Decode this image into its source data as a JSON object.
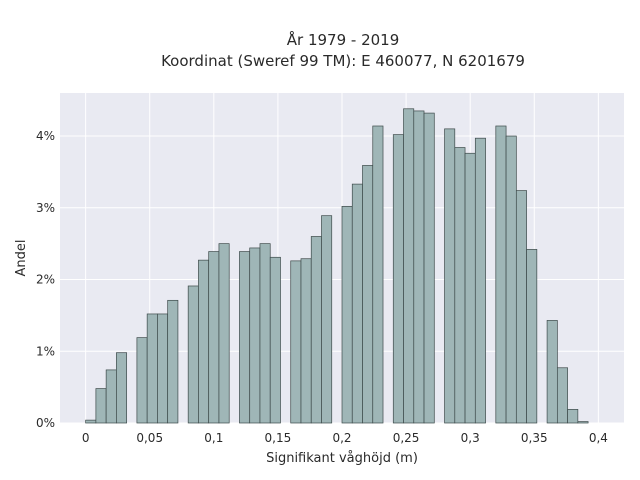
{
  "chart_data": {
    "type": "bar",
    "title": "År 1979 - 2019",
    "subtitle": "Koordinat (Sweref 99 TM): E 460077, N 6201679",
    "xlabel": "Signifikant våghöjd (m)",
    "ylabel": "Andel",
    "xlim": [
      -0.02,
      0.42
    ],
    "ylim": [
      0,
      4.6
    ],
    "bin_width": 0.008,
    "x_ticks": [
      0,
      0.05,
      0.1,
      0.15,
      0.2,
      0.25,
      0.3,
      0.35,
      0.4
    ],
    "x_tick_labels": [
      "0",
      "0,05",
      "0,1",
      "0,15",
      "0,2",
      "0,25",
      "0,3",
      "0,35",
      "0,4"
    ],
    "y_ticks": [
      0,
      1,
      2,
      3,
      4
    ],
    "y_tick_labels": [
      "0%",
      "1%",
      "2%",
      "3%",
      "4%"
    ],
    "bins": [
      {
        "x": 0.0,
        "value": 0.04
      },
      {
        "x": 0.008,
        "value": 0.48
      },
      {
        "x": 0.016,
        "value": 0.74
      },
      {
        "x": 0.024,
        "value": 0.98
      },
      {
        "x": 0.04,
        "value": 1.19
      },
      {
        "x": 0.048,
        "value": 1.52
      },
      {
        "x": 0.056,
        "value": 1.52
      },
      {
        "x": 0.064,
        "value": 1.71
      },
      {
        "x": 0.08,
        "value": 1.91
      },
      {
        "x": 0.088,
        "value": 2.27
      },
      {
        "x": 0.096,
        "value": 2.39
      },
      {
        "x": 0.104,
        "value": 2.5
      },
      {
        "x": 0.12,
        "value": 2.39
      },
      {
        "x": 0.128,
        "value": 2.44
      },
      {
        "x": 0.136,
        "value": 2.5
      },
      {
        "x": 0.144,
        "value": 2.31
      },
      {
        "x": 0.16,
        "value": 2.26
      },
      {
        "x": 0.168,
        "value": 2.29
      },
      {
        "x": 0.176,
        "value": 2.6
      },
      {
        "x": 0.184,
        "value": 2.89
      },
      {
        "x": 0.2,
        "value": 3.02
      },
      {
        "x": 0.208,
        "value": 3.33
      },
      {
        "x": 0.216,
        "value": 3.59
      },
      {
        "x": 0.224,
        "value": 4.14
      },
      {
        "x": 0.24,
        "value": 4.02
      },
      {
        "x": 0.248,
        "value": 4.38
      },
      {
        "x": 0.256,
        "value": 4.35
      },
      {
        "x": 0.264,
        "value": 4.32
      },
      {
        "x": 0.28,
        "value": 4.1
      },
      {
        "x": 0.288,
        "value": 3.84
      },
      {
        "x": 0.296,
        "value": 3.76
      },
      {
        "x": 0.304,
        "value": 3.97
      },
      {
        "x": 0.32,
        "value": 4.14
      },
      {
        "x": 0.328,
        "value": 4.0
      },
      {
        "x": 0.336,
        "value": 3.24
      },
      {
        "x": 0.344,
        "value": 2.42
      },
      {
        "x": 0.36,
        "value": 1.43
      },
      {
        "x": 0.368,
        "value": 0.77
      },
      {
        "x": 0.376,
        "value": 0.19
      },
      {
        "x": 0.384,
        "value": 0.02
      }
    ],
    "grid": true,
    "legend": "none",
    "colors": {
      "bar": "#9fb6b7",
      "bar_edge": "#3d4a4a",
      "plot_bg": "#e9eaf2"
    }
  }
}
